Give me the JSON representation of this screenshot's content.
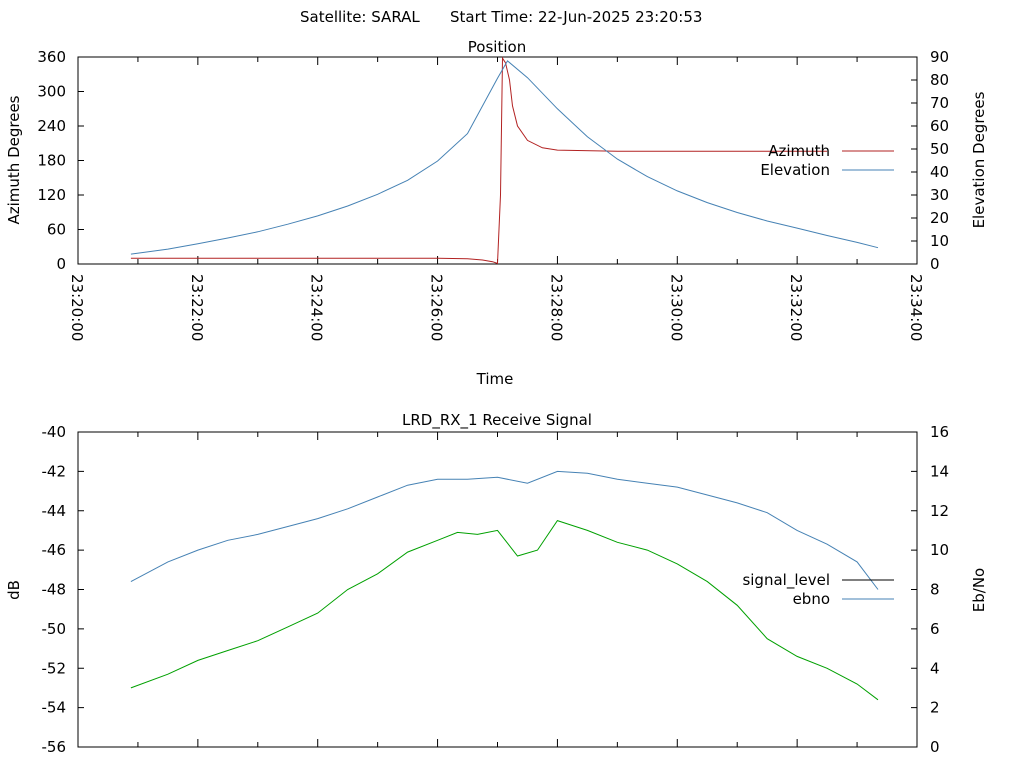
{
  "header": {
    "satellite": "Satellite: SARAL",
    "start_time": "Start Time: 22-Jun-2025 23:20:53"
  },
  "colors": {
    "azimuth": "#b22222",
    "elevation": "#4682b4",
    "signal_level": "#000000",
    "ebno": "#4682b4",
    "signal_trace": "#00a000"
  },
  "chart_data": [
    {
      "type": "line",
      "title": "Position",
      "xlabel": "Time",
      "ylabel": "Azimuth Degrees",
      "y2label": "Elevation Degrees",
      "xlim": [
        "23:20:00",
        "23:34:00"
      ],
      "ylim": [
        0,
        360
      ],
      "y2lim": [
        0,
        90
      ],
      "x_ticks": [
        "23:20:00",
        "23:22:00",
        "23:24:00",
        "23:26:00",
        "23:28:00",
        "23:30:00",
        "23:32:00",
        "23:34:00"
      ],
      "y_ticks": [
        "0",
        "60",
        "120",
        "180",
        "240",
        "300",
        "360"
      ],
      "y2_ticks": [
        "0",
        "10",
        "20",
        "30",
        "40",
        "50",
        "60",
        "70",
        "80",
        "90"
      ],
      "legend_position": "right",
      "grid": false,
      "series": [
        {
          "name": "Azimuth",
          "axis": "y",
          "x": [
            "23:20:53",
            "23:22:00",
            "23:24:00",
            "23:25:00",
            "23:26:00",
            "23:26:30",
            "23:26:45",
            "23:26:55",
            "23:27:00",
            "23:27:03",
            "23:27:05",
            "23:27:08",
            "23:27:12",
            "23:27:15",
            "23:27:20",
            "23:27:30",
            "23:27:45",
            "23:28:00",
            "23:29:00",
            "23:30:00",
            "23:32:00",
            "23:32:30"
          ],
          "values": [
            10,
            10,
            10,
            10,
            10,
            9,
            7,
            4,
            1,
            120,
            358,
            350,
            320,
            275,
            240,
            215,
            202,
            198,
            196,
            196,
            196,
            196
          ]
        },
        {
          "name": "Elevation",
          "axis": "y2",
          "x": [
            "23:20:53",
            "23:21:30",
            "23:22:00",
            "23:22:30",
            "23:23:00",
            "23:23:30",
            "23:24:00",
            "23:24:30",
            "23:25:00",
            "23:25:30",
            "23:26:00",
            "23:26:30",
            "23:27:00",
            "23:27:10",
            "23:27:30",
            "23:28:00",
            "23:28:30",
            "23:29:00",
            "23:29:30",
            "23:30:00",
            "23:30:30",
            "23:31:00",
            "23:31:30",
            "23:32:00",
            "23:32:30",
            "23:33:00",
            "23:33:21"
          ],
          "values": [
            4.3,
            6.5,
            8.8,
            11.3,
            14.0,
            17.3,
            20.9,
            25.2,
            30.3,
            36.4,
            44.8,
            56.7,
            80.8,
            88.3,
            81.0,
            67.5,
            55.3,
            45.6,
            38.0,
            31.8,
            26.7,
            22.4,
            18.7,
            15.6,
            12.4,
            9.4,
            7.1
          ]
        }
      ]
    },
    {
      "type": "line",
      "title": "LRD_RX_1 Receive Signal",
      "xlabel": "",
      "ylabel": "dB",
      "y2label": "Eb/No",
      "xlim": [
        "23:20:00",
        "23:34:00"
      ],
      "ylim": [
        -56,
        -40
      ],
      "y2lim": [
        0,
        16
      ],
      "y_ticks": [
        "-56",
        "-54",
        "-52",
        "-50",
        "-48",
        "-46",
        "-44",
        "-42",
        "-40"
      ],
      "y2_ticks": [
        "0",
        "2",
        "4",
        "6",
        "8",
        "10",
        "12",
        "14",
        "16"
      ],
      "legend_position": "right",
      "grid": false,
      "series": [
        {
          "name": "signal_level",
          "axis": "y",
          "x": [
            "23:20:53",
            "23:21:30",
            "23:22:00",
            "23:22:30",
            "23:23:00",
            "23:23:30",
            "23:24:00",
            "23:24:30",
            "23:25:00",
            "23:25:30",
            "23:26:00",
            "23:26:20",
            "23:26:40",
            "23:27:00",
            "23:27:20",
            "23:27:40",
            "23:28:00",
            "23:28:30",
            "23:29:00",
            "23:29:30",
            "23:30:00",
            "23:30:30",
            "23:31:00",
            "23:31:30",
            "23:32:00",
            "23:32:30",
            "23:33:00",
            "23:33:21"
          ],
          "values": [
            -53.0,
            -52.3,
            -51.6,
            -51.1,
            -50.6,
            -49.9,
            -49.2,
            -48.0,
            -47.2,
            -46.1,
            -45.5,
            -45.1,
            -45.2,
            -45.0,
            -46.3,
            -46.0,
            -44.5,
            -45.0,
            -45.6,
            -46.0,
            -46.7,
            -47.6,
            -48.8,
            -50.5,
            -51.4,
            -52.0,
            -52.8,
            -53.6
          ]
        },
        {
          "name": "ebno",
          "axis": "y2",
          "x": [
            "23:20:53",
            "23:21:30",
            "23:22:00",
            "23:22:30",
            "23:23:00",
            "23:23:30",
            "23:24:00",
            "23:24:30",
            "23:25:00",
            "23:25:30",
            "23:26:00",
            "23:26:30",
            "23:27:00",
            "23:27:30",
            "23:28:00",
            "23:28:30",
            "23:29:00",
            "23:29:30",
            "23:30:00",
            "23:30:30",
            "23:31:00",
            "23:31:30",
            "23:32:00",
            "23:32:30",
            "23:33:00",
            "23:33:21"
          ],
          "values": [
            8.4,
            9.4,
            10.0,
            10.5,
            10.8,
            11.2,
            11.6,
            12.1,
            12.7,
            13.3,
            13.6,
            13.6,
            13.7,
            13.4,
            14.0,
            13.9,
            13.6,
            13.4,
            13.2,
            12.8,
            12.4,
            11.9,
            11.0,
            10.3,
            9.4,
            8.0
          ]
        }
      ]
    }
  ]
}
